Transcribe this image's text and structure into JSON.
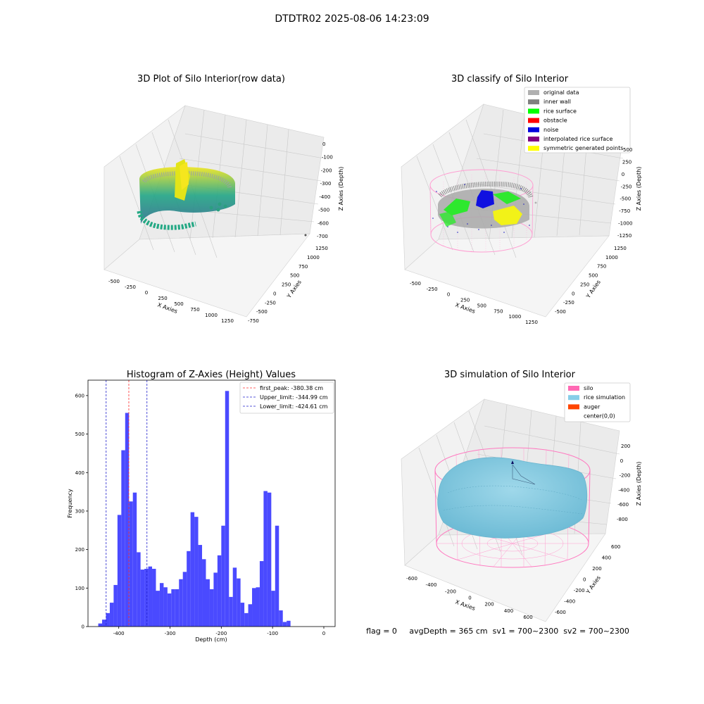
{
  "figure": {
    "title": "DTDTR02 2025-08-06 14:23:09",
    "status_line": "flag = 0     avgDepth = 365 cm  sv1 = 700~2300  sv2 = 700~2300"
  },
  "colors": {
    "hist_bar": "#4a4aff",
    "first_peak": "#ff3030",
    "limit_line": "#2020cc",
    "viridis_low": "#2f6f8e",
    "viridis_mid": "#21a585",
    "viridis_high": "#f0e61c"
  },
  "chart_data": [
    {
      "type": "scatter",
      "title": "3D Plot of Silo Interior(row data)",
      "xlabel": "X Axies",
      "ylabel": "Y Axies",
      "zlabel": "Z Axies (Depth)",
      "x_ticks": [
        "-500",
        "-250",
        "0",
        "250",
        "500",
        "750",
        "1000",
        "1250"
      ],
      "y_ticks": [
        "-750",
        "-500",
        "-250",
        "0",
        "250",
        "500",
        "750",
        "1000",
        "1250"
      ],
      "z_ticks": [
        "0",
        "-100",
        "-200",
        "-300",
        "-400",
        "-500",
        "-600",
        "-700"
      ],
      "colormap": "viridis",
      "grid": true
    },
    {
      "type": "scatter",
      "title": "3D classify of Silo Interior",
      "xlabel": "X Axies",
      "ylabel": "Y Axies",
      "zlabel": "Z Axies (Depth)",
      "x_ticks": [
        "-500",
        "-250",
        "0",
        "250",
        "500",
        "750",
        "1000",
        "1250"
      ],
      "y_ticks": [
        "-500",
        "-250",
        "0",
        "250",
        "500",
        "750",
        "1000",
        "1250"
      ],
      "z_ticks": [
        "500",
        "250",
        "0",
        "-250",
        "-500",
        "-750",
        "-1000",
        "-1250"
      ],
      "legend_position": "top-right",
      "legend": [
        {
          "name": "original data",
          "color": "#b0b0b0"
        },
        {
          "name": "inner wall",
          "color": "#808080"
        },
        {
          "name": "rice surface",
          "color": "#00ff00"
        },
        {
          "name": "obstacle",
          "color": "#ff0000"
        },
        {
          "name": "noise",
          "color": "#0000dd"
        },
        {
          "name": "interpolated rice surface",
          "color": "#800080"
        },
        {
          "name": "symmetric generated points",
          "color": "#ffff00"
        }
      ],
      "grid": true
    },
    {
      "type": "bar",
      "title": "Histogram of Z-Axies (Height) Values",
      "xlabel": "Depth (cm)",
      "ylabel": "Frequency",
      "xlim": [
        -460,
        22
      ],
      "ylim": [
        0,
        640
      ],
      "x_ticks": [
        -400,
        -300,
        -200,
        -100,
        0
      ],
      "y_ticks": [
        0,
        100,
        200,
        300,
        400,
        500,
        600
      ],
      "bin_start": -440,
      "bin_width": 7.5,
      "values": [
        8,
        18,
        35,
        62,
        108,
        290,
        458,
        555,
        325,
        348,
        193,
        148,
        150,
        156,
        150,
        93,
        113,
        102,
        86,
        97,
        97,
        123,
        142,
        196,
        297,
        285,
        212,
        175,
        123,
        97,
        140,
        185,
        262,
        612,
        77,
        153,
        125,
        62,
        35,
        58,
        100,
        102,
        170,
        352,
        348,
        93,
        262,
        42,
        12,
        15
      ],
      "vlines": [
        {
          "name": "first_peak: -380.38 cm",
          "value": -380.38,
          "color": "#ff3030"
        },
        {
          "name": "Upper_limit: -344.99 cm",
          "value": -344.99,
          "color": "#2020cc"
        },
        {
          "name": "Lower_limit: -424.61 cm",
          "value": -424.61,
          "color": "#2020cc"
        }
      ],
      "legend_position": "top-right",
      "grid": false
    },
    {
      "type": "scatter",
      "title": "3D simulation of Silo Interior",
      "xlabel": "X Axies",
      "ylabel": "Y Axies",
      "zlabel": "Z Axies (Depth)",
      "x_ticks": [
        "-600",
        "-400",
        "-200",
        "0",
        "200",
        "400",
        "600"
      ],
      "y_ticks": [
        "-600",
        "-400",
        "-200",
        "0",
        "200",
        "400",
        "600"
      ],
      "z_ticks": [
        "200",
        "0",
        "-200",
        "-400",
        "-600",
        "-800"
      ],
      "legend_position": "top-right",
      "legend": [
        {
          "name": "silo",
          "color": "#ff69b4"
        },
        {
          "name": "rice simulation",
          "color": "#87cee8"
        },
        {
          "name": "auger",
          "color": "#ff4500"
        },
        {
          "name": "center(0,0)",
          "color": ""
        }
      ],
      "grid": true
    }
  ]
}
